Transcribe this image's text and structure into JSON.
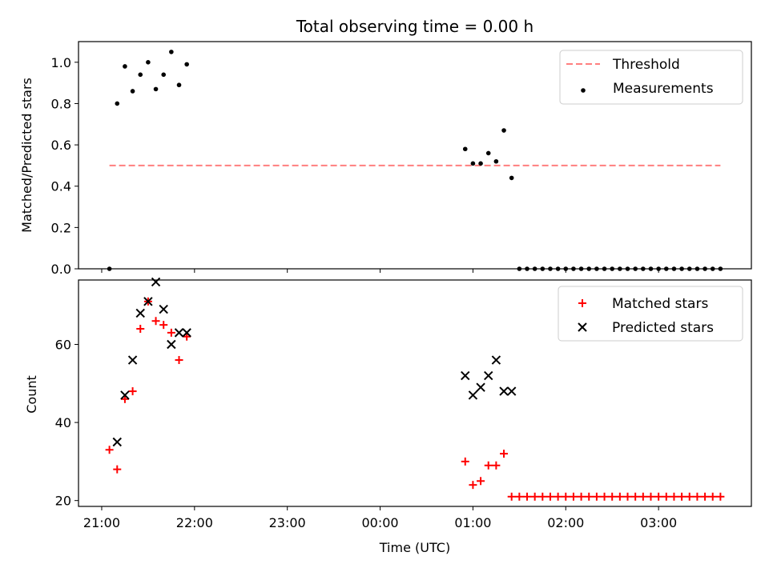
{
  "title": "Total observing time = 0.00 h",
  "colors": {
    "threshold": "#ff7f7f",
    "matched": "#ff0000",
    "predicted": "#000000",
    "measurement": "#000000"
  },
  "chart_data": [
    {
      "type": "scatter",
      "panel": "top",
      "title": "Total observing time = 0.00 h",
      "ylabel": "Matched/Predicted stars",
      "xlabel": "",
      "ylim": [
        0,
        1.1
      ],
      "yticks": [
        0.0,
        0.2,
        0.4,
        0.6,
        0.8,
        1.0
      ],
      "ytick_labels": [
        "0.0",
        "0.2",
        "0.4",
        "0.6",
        "0.8",
        "1.0"
      ],
      "legend": {
        "placement": "top-right",
        "entries": [
          "Threshold",
          "Measurements"
        ]
      },
      "threshold": {
        "name": "Threshold",
        "value": 0.5,
        "x_start": "21:05",
        "x_end": "03:40",
        "style": "dashed"
      },
      "series": [
        {
          "name": "Measurements",
          "points": [
            [
              "21:05",
              0.0
            ],
            [
              "21:10",
              0.8
            ],
            [
              "21:15",
              0.98
            ],
            [
              "21:20",
              0.86
            ],
            [
              "21:25",
              0.94
            ],
            [
              "21:30",
              1.0
            ],
            [
              "21:35",
              0.87
            ],
            [
              "21:40",
              0.94
            ],
            [
              "21:45",
              1.05
            ],
            [
              "21:50",
              0.89
            ],
            [
              "21:55",
              0.99
            ],
            [
              "00:55",
              0.58
            ],
            [
              "01:00",
              0.51
            ],
            [
              "01:05",
              0.51
            ],
            [
              "01:10",
              0.56
            ],
            [
              "01:15",
              0.52
            ],
            [
              "01:20",
              0.67
            ],
            [
              "01:25",
              0.44
            ],
            [
              "01:30",
              0.0
            ],
            [
              "01:35",
              0.0
            ],
            [
              "01:40",
              0.0
            ],
            [
              "01:45",
              0.0
            ],
            [
              "01:50",
              0.0
            ],
            [
              "01:55",
              0.0
            ],
            [
              "02:00",
              0.0
            ],
            [
              "02:05",
              0.0
            ],
            [
              "02:10",
              0.0
            ],
            [
              "02:15",
              0.0
            ],
            [
              "02:20",
              0.0
            ],
            [
              "02:25",
              0.0
            ],
            [
              "02:30",
              0.0
            ],
            [
              "02:35",
              0.0
            ],
            [
              "02:40",
              0.0
            ],
            [
              "02:45",
              0.0
            ],
            [
              "02:50",
              0.0
            ],
            [
              "02:55",
              0.0
            ],
            [
              "03:00",
              0.0
            ],
            [
              "03:05",
              0.0
            ],
            [
              "03:10",
              0.0
            ],
            [
              "03:15",
              0.0
            ],
            [
              "03:20",
              0.0
            ],
            [
              "03:25",
              0.0
            ],
            [
              "03:30",
              0.0
            ],
            [
              "03:35",
              0.0
            ],
            [
              "03:40",
              0.0
            ]
          ]
        }
      ]
    },
    {
      "type": "scatter",
      "panel": "bottom",
      "title": "",
      "ylabel": "Count",
      "xlabel": "Time (UTC)",
      "ylim": [
        18.5,
        76.5
      ],
      "yticks": [
        20,
        40,
        60
      ],
      "ytick_labels": [
        "20",
        "40",
        "60"
      ],
      "xlim": [
        "20:45",
        "04:00"
      ],
      "xticks": [
        "21:00",
        "22:00",
        "23:00",
        "00:00",
        "01:00",
        "02:00",
        "03:00"
      ],
      "xtick_labels": [
        "21:00",
        "22:00",
        "23:00",
        "00:00",
        "01:00",
        "02:00",
        "03:00"
      ],
      "legend": {
        "placement": "top-right",
        "entries": [
          "Matched stars",
          "Predicted stars"
        ]
      },
      "series": [
        {
          "name": "Matched stars",
          "marker": "plus",
          "points": [
            [
              "21:05",
              33
            ],
            [
              "21:10",
              28
            ],
            [
              "21:15",
              46
            ],
            [
              "21:20",
              48
            ],
            [
              "21:25",
              64
            ],
            [
              "21:30",
              71
            ],
            [
              "21:35",
              66
            ],
            [
              "21:40",
              65
            ],
            [
              "21:45",
              63
            ],
            [
              "21:50",
              56
            ],
            [
              "21:55",
              62
            ],
            [
              "00:55",
              30
            ],
            [
              "01:00",
              24
            ],
            [
              "01:05",
              25
            ],
            [
              "01:10",
              29
            ],
            [
              "01:15",
              29
            ],
            [
              "01:20",
              32
            ],
            [
              "01:25",
              21
            ],
            [
              "01:30",
              21
            ],
            [
              "01:35",
              21
            ],
            [
              "01:40",
              21
            ],
            [
              "01:45",
              21
            ],
            [
              "01:50",
              21
            ],
            [
              "01:55",
              21
            ],
            [
              "02:00",
              21
            ],
            [
              "02:05",
              21
            ],
            [
              "02:10",
              21
            ],
            [
              "02:15",
              21
            ],
            [
              "02:20",
              21
            ],
            [
              "02:25",
              21
            ],
            [
              "02:30",
              21
            ],
            [
              "02:35",
              21
            ],
            [
              "02:40",
              21
            ],
            [
              "02:45",
              21
            ],
            [
              "02:50",
              21
            ],
            [
              "02:55",
              21
            ],
            [
              "03:00",
              21
            ],
            [
              "03:05",
              21
            ],
            [
              "03:10",
              21
            ],
            [
              "03:15",
              21
            ],
            [
              "03:20",
              21
            ],
            [
              "03:25",
              21
            ],
            [
              "03:30",
              21
            ],
            [
              "03:35",
              21
            ],
            [
              "03:40",
              21
            ]
          ]
        },
        {
          "name": "Predicted stars",
          "marker": "x",
          "points": [
            [
              "21:10",
              35
            ],
            [
              "21:15",
              47
            ],
            [
              "21:20",
              56
            ],
            [
              "21:25",
              68
            ],
            [
              "21:30",
              71
            ],
            [
              "21:35",
              76
            ],
            [
              "21:40",
              69
            ],
            [
              "21:45",
              60
            ],
            [
              "21:50",
              63
            ],
            [
              "21:55",
              63
            ],
            [
              "00:55",
              52
            ],
            [
              "01:00",
              47
            ],
            [
              "01:05",
              49
            ],
            [
              "01:10",
              52
            ],
            [
              "01:15",
              56
            ],
            [
              "01:20",
              48
            ],
            [
              "01:25",
              48
            ]
          ]
        }
      ]
    }
  ]
}
